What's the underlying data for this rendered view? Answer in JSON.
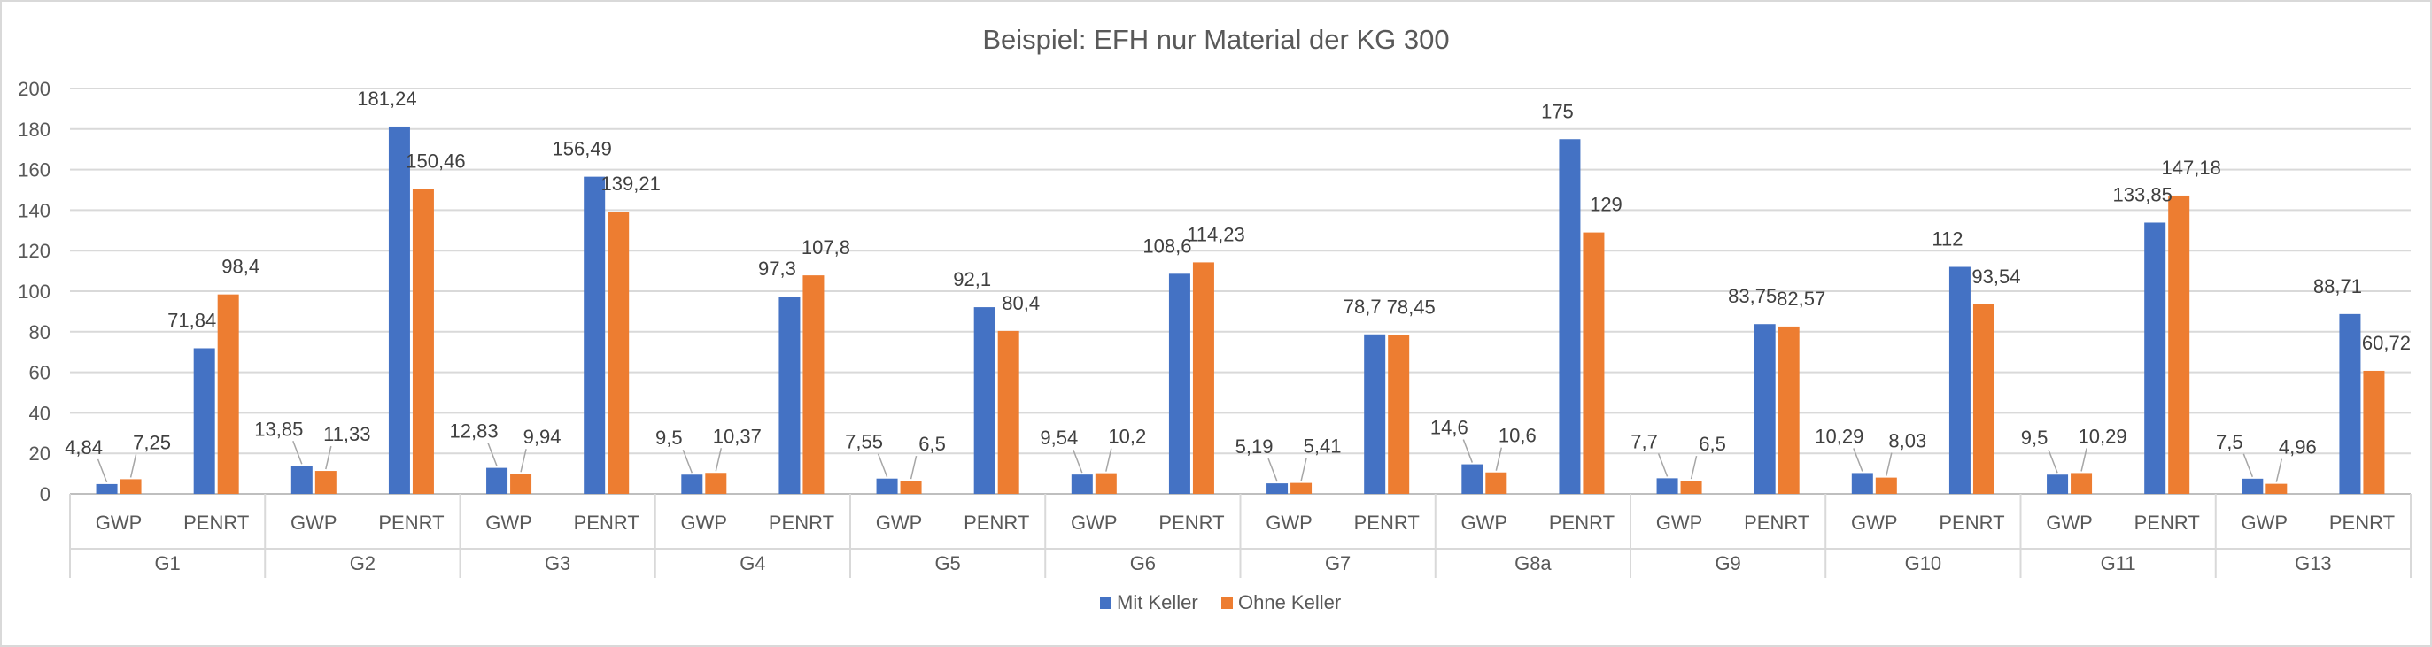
{
  "chart_data": {
    "type": "bar",
    "title": "Beispiel: EFH nur Material der KG 300",
    "xlabel": "",
    "ylabel": "",
    "ylim": [
      0,
      200
    ],
    "yticks": [
      0,
      20,
      40,
      60,
      80,
      100,
      120,
      140,
      160,
      180,
      200
    ],
    "grid": true,
    "legend_position": "bottom",
    "groups": [
      "G1",
      "G2",
      "G3",
      "G4",
      "G5",
      "G6",
      "G7",
      "G8a",
      "G9",
      "G10",
      "G11",
      "G13"
    ],
    "subcategories": [
      "GWP",
      "PENRT"
    ],
    "series": [
      {
        "name": "Mit Keller",
        "color": "#4472C4",
        "values": [
          4.84,
          71.84,
          13.85,
          181.24,
          12.83,
          156.49,
          9.5,
          97.3,
          7.55,
          92.1,
          9.54,
          108.6,
          5.19,
          78.7,
          14.6,
          175,
          7.7,
          83.75,
          10.29,
          112,
          9.5,
          133.85,
          7.5,
          88.71
        ],
        "labels": [
          "4,84",
          "71,84",
          "13,85",
          "181,24",
          "12,83",
          "156,49",
          "9,5",
          "97,3",
          "7,55",
          "92,1",
          "9,54",
          "108,6",
          "5,19",
          "78,7",
          "14,6",
          "175",
          "7,7",
          "83,75",
          "10,29",
          "112",
          "9,5",
          "133,85",
          "7,5",
          "88,71"
        ]
      },
      {
        "name": "Ohne Keller",
        "color": "#ED7D31",
        "values": [
          7.25,
          98.4,
          11.33,
          150.46,
          9.94,
          139.21,
          10.37,
          107.8,
          6.5,
          80.4,
          10.2,
          114.23,
          5.41,
          78.45,
          10.6,
          129,
          6.5,
          82.57,
          8.03,
          93.54,
          10.29,
          147.18,
          4.96,
          60.72
        ],
        "labels": [
          "7,25",
          "98,4",
          "11,33",
          "150,46",
          "9,94",
          "139,21",
          "10,37",
          "107,8",
          "6,5",
          "80,4",
          "10,2",
          "114,23",
          "5,41",
          "78,45",
          "10,6",
          "129",
          "6,5",
          "82,57",
          "8,03",
          "93,54",
          "10,29",
          "147,18",
          "4,96",
          "60,72"
        ]
      }
    ]
  }
}
